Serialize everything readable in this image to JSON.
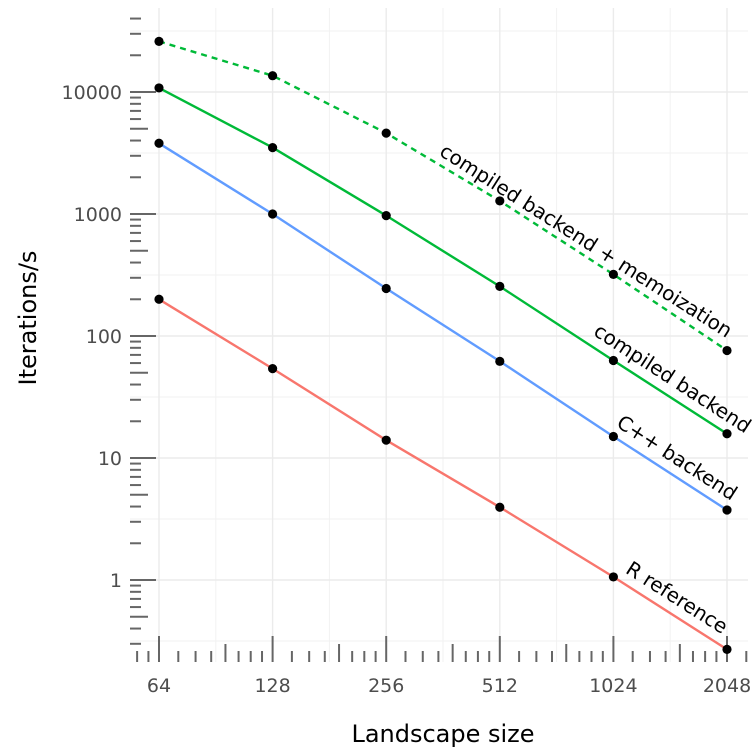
{
  "chart_data": {
    "type": "line",
    "title": "",
    "xlabel": "Landscape size",
    "ylabel": "Iterations/s",
    "x_scale": "log2",
    "y_scale": "log10",
    "x": [
      64,
      128,
      256,
      512,
      1024,
      2048
    ],
    "x_tick_labels": [
      "64",
      "128",
      "256",
      "512",
      "1024",
      "2048"
    ],
    "y_ticks": [
      1,
      10,
      100,
      1000,
      10000
    ],
    "y_tick_labels": [
      "1",
      "10",
      "100",
      "1000",
      "10000"
    ],
    "xlim": [
      64,
      2048
    ],
    "ylim": [
      0.2,
      40000
    ],
    "grid": true,
    "legend": "none (direct labels on lines)",
    "series": [
      {
        "name": "compiled backend + memoization",
        "color": "#00BA38",
        "dash": "dashed",
        "values": [
          26000,
          13600,
          4600,
          1280,
          320,
          76
        ]
      },
      {
        "name": "compiled backend",
        "color": "#00BA38",
        "dash": "solid",
        "values": [
          10800,
          3500,
          970,
          255,
          63,
          15.8
        ]
      },
      {
        "name": "C++ backend",
        "color": "#619CFF",
        "dash": "solid",
        "values": [
          3800,
          1000,
          245,
          62,
          15,
          3.75
        ]
      },
      {
        "name": "R reference",
        "color": "#F8766D",
        "dash": "solid",
        "values": [
          200,
          54,
          14,
          3.95,
          1.06,
          0.27
        ]
      }
    ]
  }
}
